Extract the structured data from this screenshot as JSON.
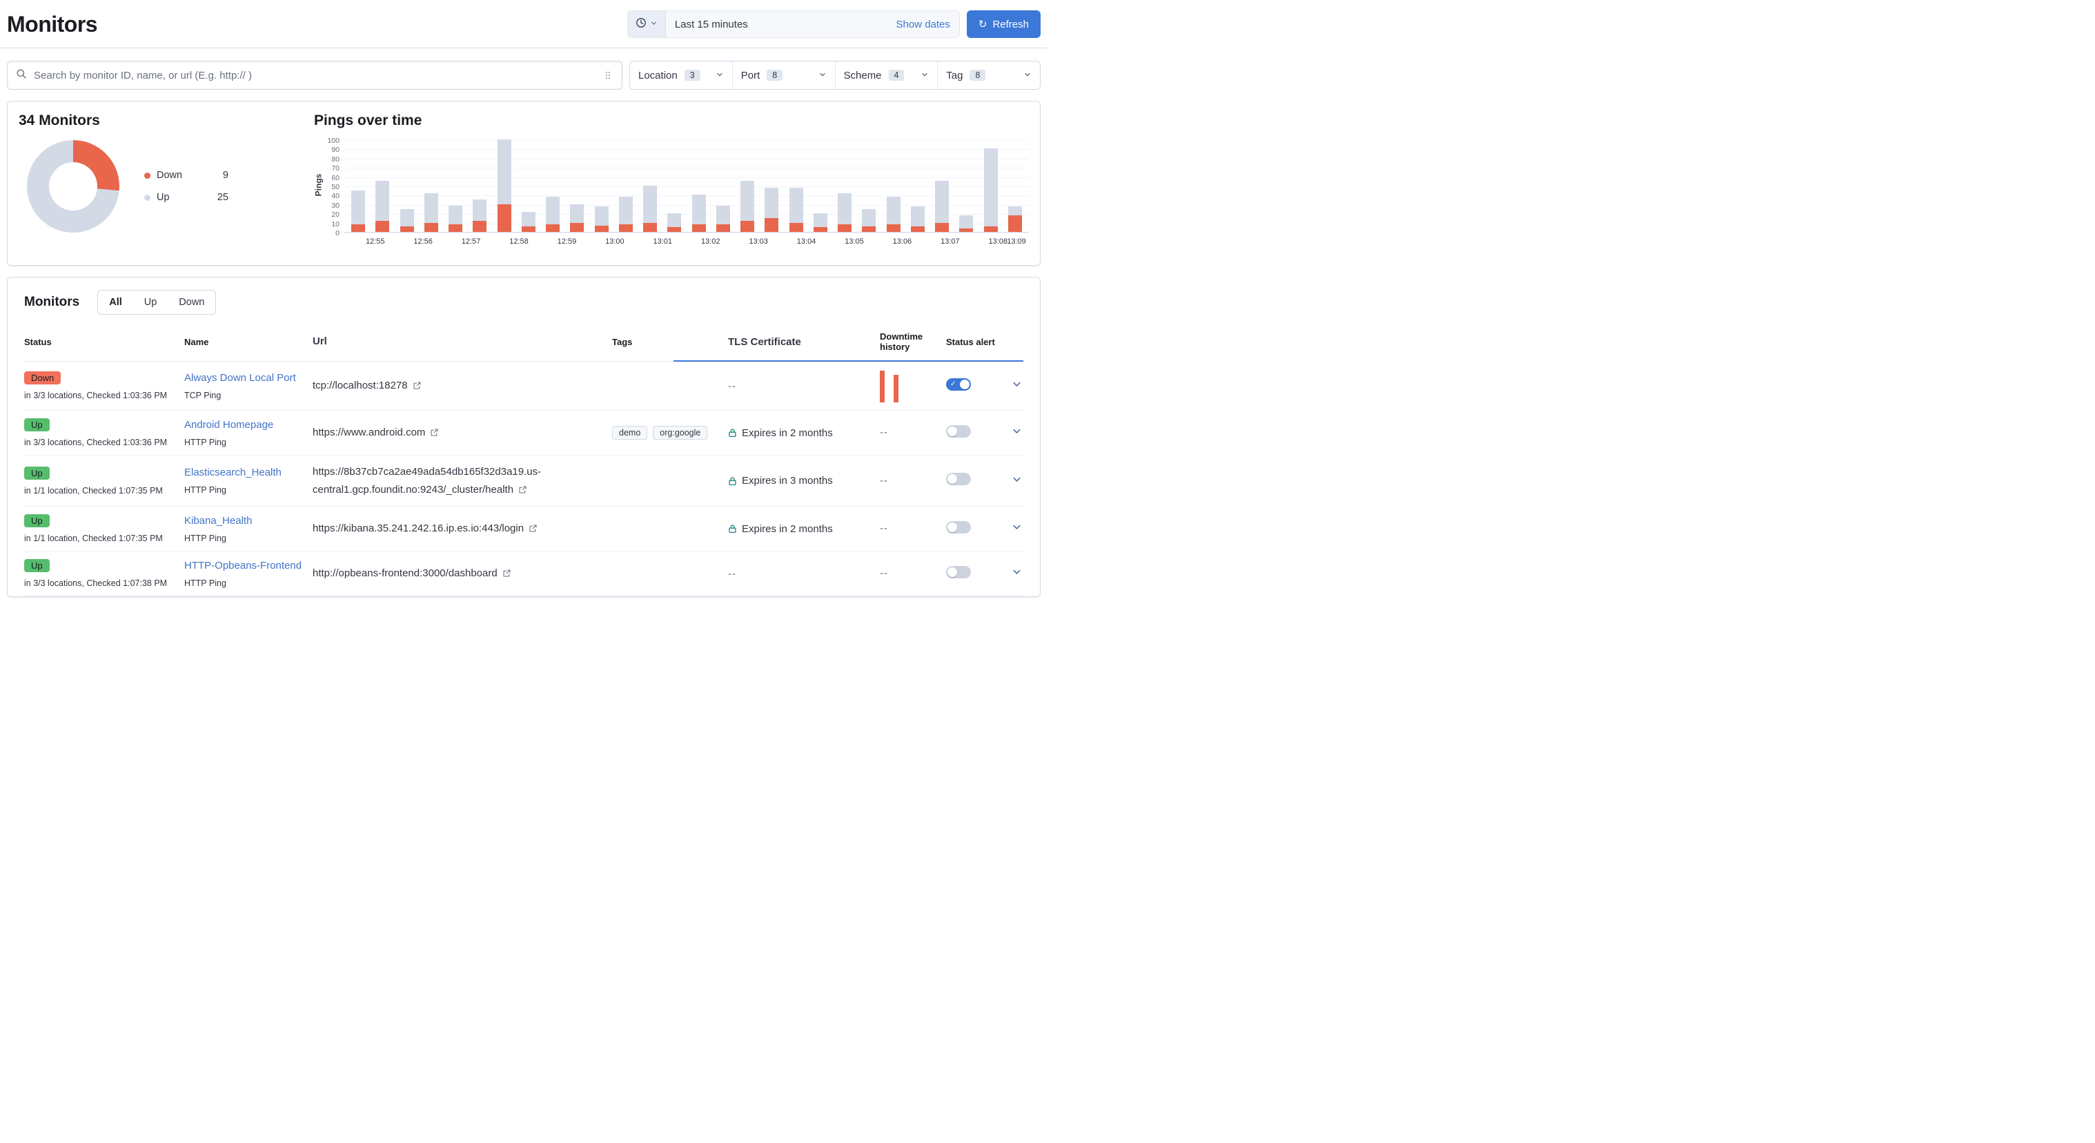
{
  "header": {
    "title": "Monitors",
    "time_picker": {
      "value": "Last 15 minutes",
      "show_dates_label": "Show dates"
    },
    "refresh_label": "Refresh"
  },
  "search": {
    "placeholder": "Search by monitor ID, name, or url (E.g. http:// )"
  },
  "filters": [
    {
      "label": "Location",
      "count": "3"
    },
    {
      "label": "Port",
      "count": "8"
    },
    {
      "label": "Scheme",
      "count": "4"
    },
    {
      "label": "Tag",
      "count": "8"
    }
  ],
  "overview": {
    "title": "34 Monitors",
    "legend": [
      {
        "label": "Down",
        "value": "9",
        "color": "#e7664c"
      },
      {
        "label": "Up",
        "value": "25",
        "color": "#d3dae6"
      }
    ]
  },
  "pings": {
    "title": "Pings over time",
    "ylabel": "Pings"
  },
  "monitor_list": {
    "title": "Monitors",
    "tabs": [
      {
        "label": "All",
        "active": true
      },
      {
        "label": "Up",
        "active": false
      },
      {
        "label": "Down",
        "active": false
      }
    ],
    "columns": [
      "Status",
      "Name",
      "Url",
      "Tags",
      "TLS Certificate",
      "Downtime history",
      "Status alert"
    ],
    "rows": [
      {
        "status": "Down",
        "status_state": "down",
        "checked": "in 3/3 locations, Checked 1:03:36 PM",
        "name": "Always Down Local Port",
        "ping_type": "TCP Ping",
        "url": "tcp://localhost:18278",
        "tags": [],
        "tls": "--",
        "tls_secure": false,
        "downtime": "",
        "downtime_sparkline": true,
        "alert_on": true
      },
      {
        "status": "Up",
        "status_state": "up",
        "checked": "in 3/3 locations, Checked 1:03:36 PM",
        "name": "Android Homepage",
        "ping_type": "HTTP Ping",
        "url": "https://www.android.com",
        "tags": [
          "demo",
          "org:google"
        ],
        "tls": "Expires in 2 months",
        "tls_secure": true,
        "downtime": "--",
        "downtime_sparkline": false,
        "alert_on": false
      },
      {
        "status": "Up",
        "status_state": "up",
        "checked": "in 1/1 location, Checked 1:07:35 PM",
        "name": "Elasticsearch_Health",
        "ping_type": "HTTP Ping",
        "url": "https://8b37cb7ca2ae49ada54db165f32d3a19.us-central1.gcp.foundit.no:9243/_cluster/health",
        "tags": [],
        "tls": "Expires in 3 months",
        "tls_secure": true,
        "downtime": "--",
        "downtime_sparkline": false,
        "alert_on": false
      },
      {
        "status": "Up",
        "status_state": "up",
        "checked": "in 1/1 location, Checked 1:07:35 PM",
        "name": "Kibana_Health",
        "ping_type": "HTTP Ping",
        "url": "https://kibana.35.241.242.16.ip.es.io:443/login",
        "tags": [],
        "tls": "Expires in 2 months",
        "tls_secure": true,
        "downtime": "--",
        "downtime_sparkline": false,
        "alert_on": false
      },
      {
        "status": "Up",
        "status_state": "up",
        "checked": "in 3/3 locations, Checked 1:07:38 PM",
        "name": "HTTP-Opbeans-Frontend",
        "ping_type": "HTTP Ping",
        "url": "http://opbeans-frontend:3000/dashboard",
        "tags": [],
        "tls": "--",
        "tls_secure": false,
        "downtime": "--",
        "downtime_sparkline": false,
        "alert_on": false
      }
    ]
  },
  "chart_data": [
    {
      "type": "pie",
      "title": "34 Monitors",
      "donut": true,
      "legend_position": "right",
      "slices": [
        {
          "label": "Down",
          "value": 9,
          "color": "#e7664c"
        },
        {
          "label": "Up",
          "value": 25,
          "color": "#d3dae6"
        }
      ]
    },
    {
      "type": "bar",
      "title": "Pings over time",
      "ylabel": "Pings",
      "stacked": true,
      "grid": true,
      "ylim": [
        0,
        100
      ],
      "y_ticks": [
        100,
        90,
        80,
        70,
        60,
        50,
        40,
        30,
        20,
        10,
        0
      ],
      "x_ticks": [
        "12:55",
        "12:56",
        "12:57",
        "12:58",
        "12:59",
        "13:00",
        "13:01",
        "13:02",
        "13:03",
        "13:04",
        "13:05",
        "13:06",
        "13:07",
        "13:08",
        "13:09"
      ],
      "series_colors": {
        "up": "#d3dae6",
        "down": "#e7664c"
      },
      "bars": [
        {
          "down": 8,
          "up": 37
        },
        {
          "down": 12,
          "up": 43
        },
        {
          "down": 6,
          "up": 19
        },
        {
          "down": 10,
          "up": 32
        },
        {
          "down": 8,
          "up": 20
        },
        {
          "down": 12,
          "up": 23
        },
        {
          "down": 30,
          "up": 70
        },
        {
          "down": 6,
          "up": 16
        },
        {
          "down": 8,
          "up": 30
        },
        {
          "down": 10,
          "up": 20
        },
        {
          "down": 7,
          "up": 21
        },
        {
          "down": 8,
          "up": 30
        },
        {
          "down": 10,
          "up": 40
        },
        {
          "down": 5,
          "up": 15
        },
        {
          "down": 8,
          "up": 32
        },
        {
          "down": 8,
          "up": 20
        },
        {
          "down": 12,
          "up": 43
        },
        {
          "down": 15,
          "up": 33
        },
        {
          "down": 10,
          "up": 38
        },
        {
          "down": 5,
          "up": 15
        },
        {
          "down": 8,
          "up": 34
        },
        {
          "down": 6,
          "up": 19
        },
        {
          "down": 8,
          "up": 30
        },
        {
          "down": 6,
          "up": 22
        },
        {
          "down": 10,
          "up": 45
        },
        {
          "down": 4,
          "up": 14
        },
        {
          "down": 6,
          "up": 84
        },
        {
          "down": 18,
          "up": 10
        }
      ]
    },
    {
      "type": "bar",
      "title": "Downtime history (Always Down Local Port)",
      "values": [
        100,
        88
      ],
      "color": "#e7664c"
    }
  ],
  "colors": {
    "accent_blue": "#3b78d8",
    "link_blue": "#4273c8",
    "down_orange": "#e7664c",
    "down_badge": "#f2705c",
    "up_badge": "#55bd6c",
    "series_gray": "#d3dae6",
    "tls_lock_green": "#017d73"
  }
}
